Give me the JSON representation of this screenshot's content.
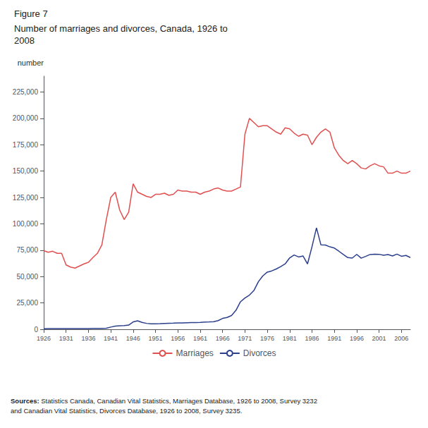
{
  "chart_data": {
    "type": "line",
    "title": "Figure 7",
    "subtitle": "Number of marriages and divorces, Canada, 1926 to\n2008",
    "ylabel": "number",
    "annotations": [
      "Sources:",
      "Statistics Canada, Canadian Vital Statistics, Marriages Database, 1926 to 2008, Survey 3232\nand Canadian Vital Statistics, Divorces Database, 1926 to 2008, Survey 3235."
    ],
    "x": [
      1926,
      1927,
      1928,
      1929,
      1930,
      1931,
      1932,
      1933,
      1934,
      1935,
      1936,
      1937,
      1938,
      1939,
      1940,
      1941,
      1942,
      1943,
      1944,
      1945,
      1946,
      1947,
      1948,
      1949,
      1950,
      1951,
      1952,
      1953,
      1954,
      1955,
      1956,
      1957,
      1958,
      1959,
      1960,
      1961,
      1962,
      1963,
      1964,
      1965,
      1966,
      1967,
      1968,
      1969,
      1970,
      1971,
      1972,
      1973,
      1974,
      1975,
      1976,
      1977,
      1978,
      1979,
      1980,
      1981,
      1982,
      1983,
      1984,
      1985,
      1986,
      1987,
      1988,
      1989,
      1990,
      1991,
      1992,
      1993,
      1994,
      1995,
      1996,
      1997,
      1998,
      1999,
      2000,
      2001,
      2002,
      2003,
      2004,
      2005,
      2006,
      2007,
      2008
    ],
    "series": [
      {
        "name": "Marriages",
        "color": "#e05050",
        "values": [
          74548,
          73000,
          74000,
          72000,
          72000,
          61000,
          59000,
          58000,
          60000,
          62000,
          63500,
          68000,
          72000,
          80000,
          104000,
          125000,
          130000,
          113000,
          104000,
          111000,
          137945,
          130000,
          128000,
          126000,
          125000,
          128000,
          128000,
          129000,
          127000,
          128000,
          132000,
          131000,
          131000,
          130000,
          130000,
          128000,
          130000,
          131000,
          133000,
          134000,
          132000,
          131000,
          131000,
          133000,
          135000,
          185000,
          200000,
          196000,
          192000,
          193000,
          193000,
          190000,
          187000,
          185000,
          191000,
          190000,
          186000,
          183000,
          185000,
          184000,
          175000,
          182000,
          187000,
          190000,
          187000,
          172000,
          165000,
          160000,
          157000,
          160000,
          157000,
          153000,
          152000,
          155000,
          157000,
          155000,
          154000,
          148000,
          148000,
          150000,
          148000,
          148000,
          150000
        ]
      },
      {
        "name": "Divorces",
        "color": "#2b3f8c",
        "values": [
          574,
          600,
          600,
          600,
          600,
          700,
          700,
          700,
          700,
          700,
          700,
          800,
          800,
          900,
          1000,
          2100,
          3000,
          3300,
          3500,
          4000,
          7000,
          8000,
          6500,
          5600,
          5200,
          5200,
          5300,
          5500,
          5700,
          5800,
          6000,
          6000,
          6200,
          6300,
          6400,
          6600,
          6900,
          7000,
          7200,
          8200,
          10300,
          11200,
          13000,
          18000,
          26093,
          29685,
          32389,
          36704,
          45019,
          50611,
          54207,
          55370,
          57155,
          59474,
          62019,
          67671,
          70436,
          68567,
          69462,
          61980,
          78304,
          96200,
          80000,
          79900,
          78152,
          77020,
          74050,
          70900,
          68000,
          67500,
          71000,
          67408,
          69088,
          70911,
          71144,
          71110,
          70155,
          70828,
          69535,
          71269,
          69260,
          70000,
          68000
        ]
      }
    ],
    "xlim": [
      1926,
      2008
    ],
    "xticks": [
      1926,
      1931,
      1936,
      1941,
      1946,
      1951,
      1956,
      1961,
      1966,
      1971,
      1976,
      1981,
      1986,
      1991,
      1996,
      2001,
      2006
    ],
    "ylim": [
      0,
      240000
    ],
    "yticks": [
      0,
      {
        "value": 25000,
        "label": "25,000"
      },
      {
        "value": 50000,
        "label": "50,000"
      },
      {
        "value": 75000,
        "label": "75,000"
      },
      {
        "value": 100000,
        "label": "100,000"
      },
      {
        "value": 125000,
        "label": "125,000"
      },
      {
        "value": 150000,
        "label": "150,000"
      },
      {
        "value": 175000,
        "label": "175,000"
      },
      {
        "value": 200000,
        "label": "200,000"
      },
      {
        "value": 225000,
        "label": "225,000"
      }
    ],
    "grid": false,
    "legend": "bottom"
  }
}
